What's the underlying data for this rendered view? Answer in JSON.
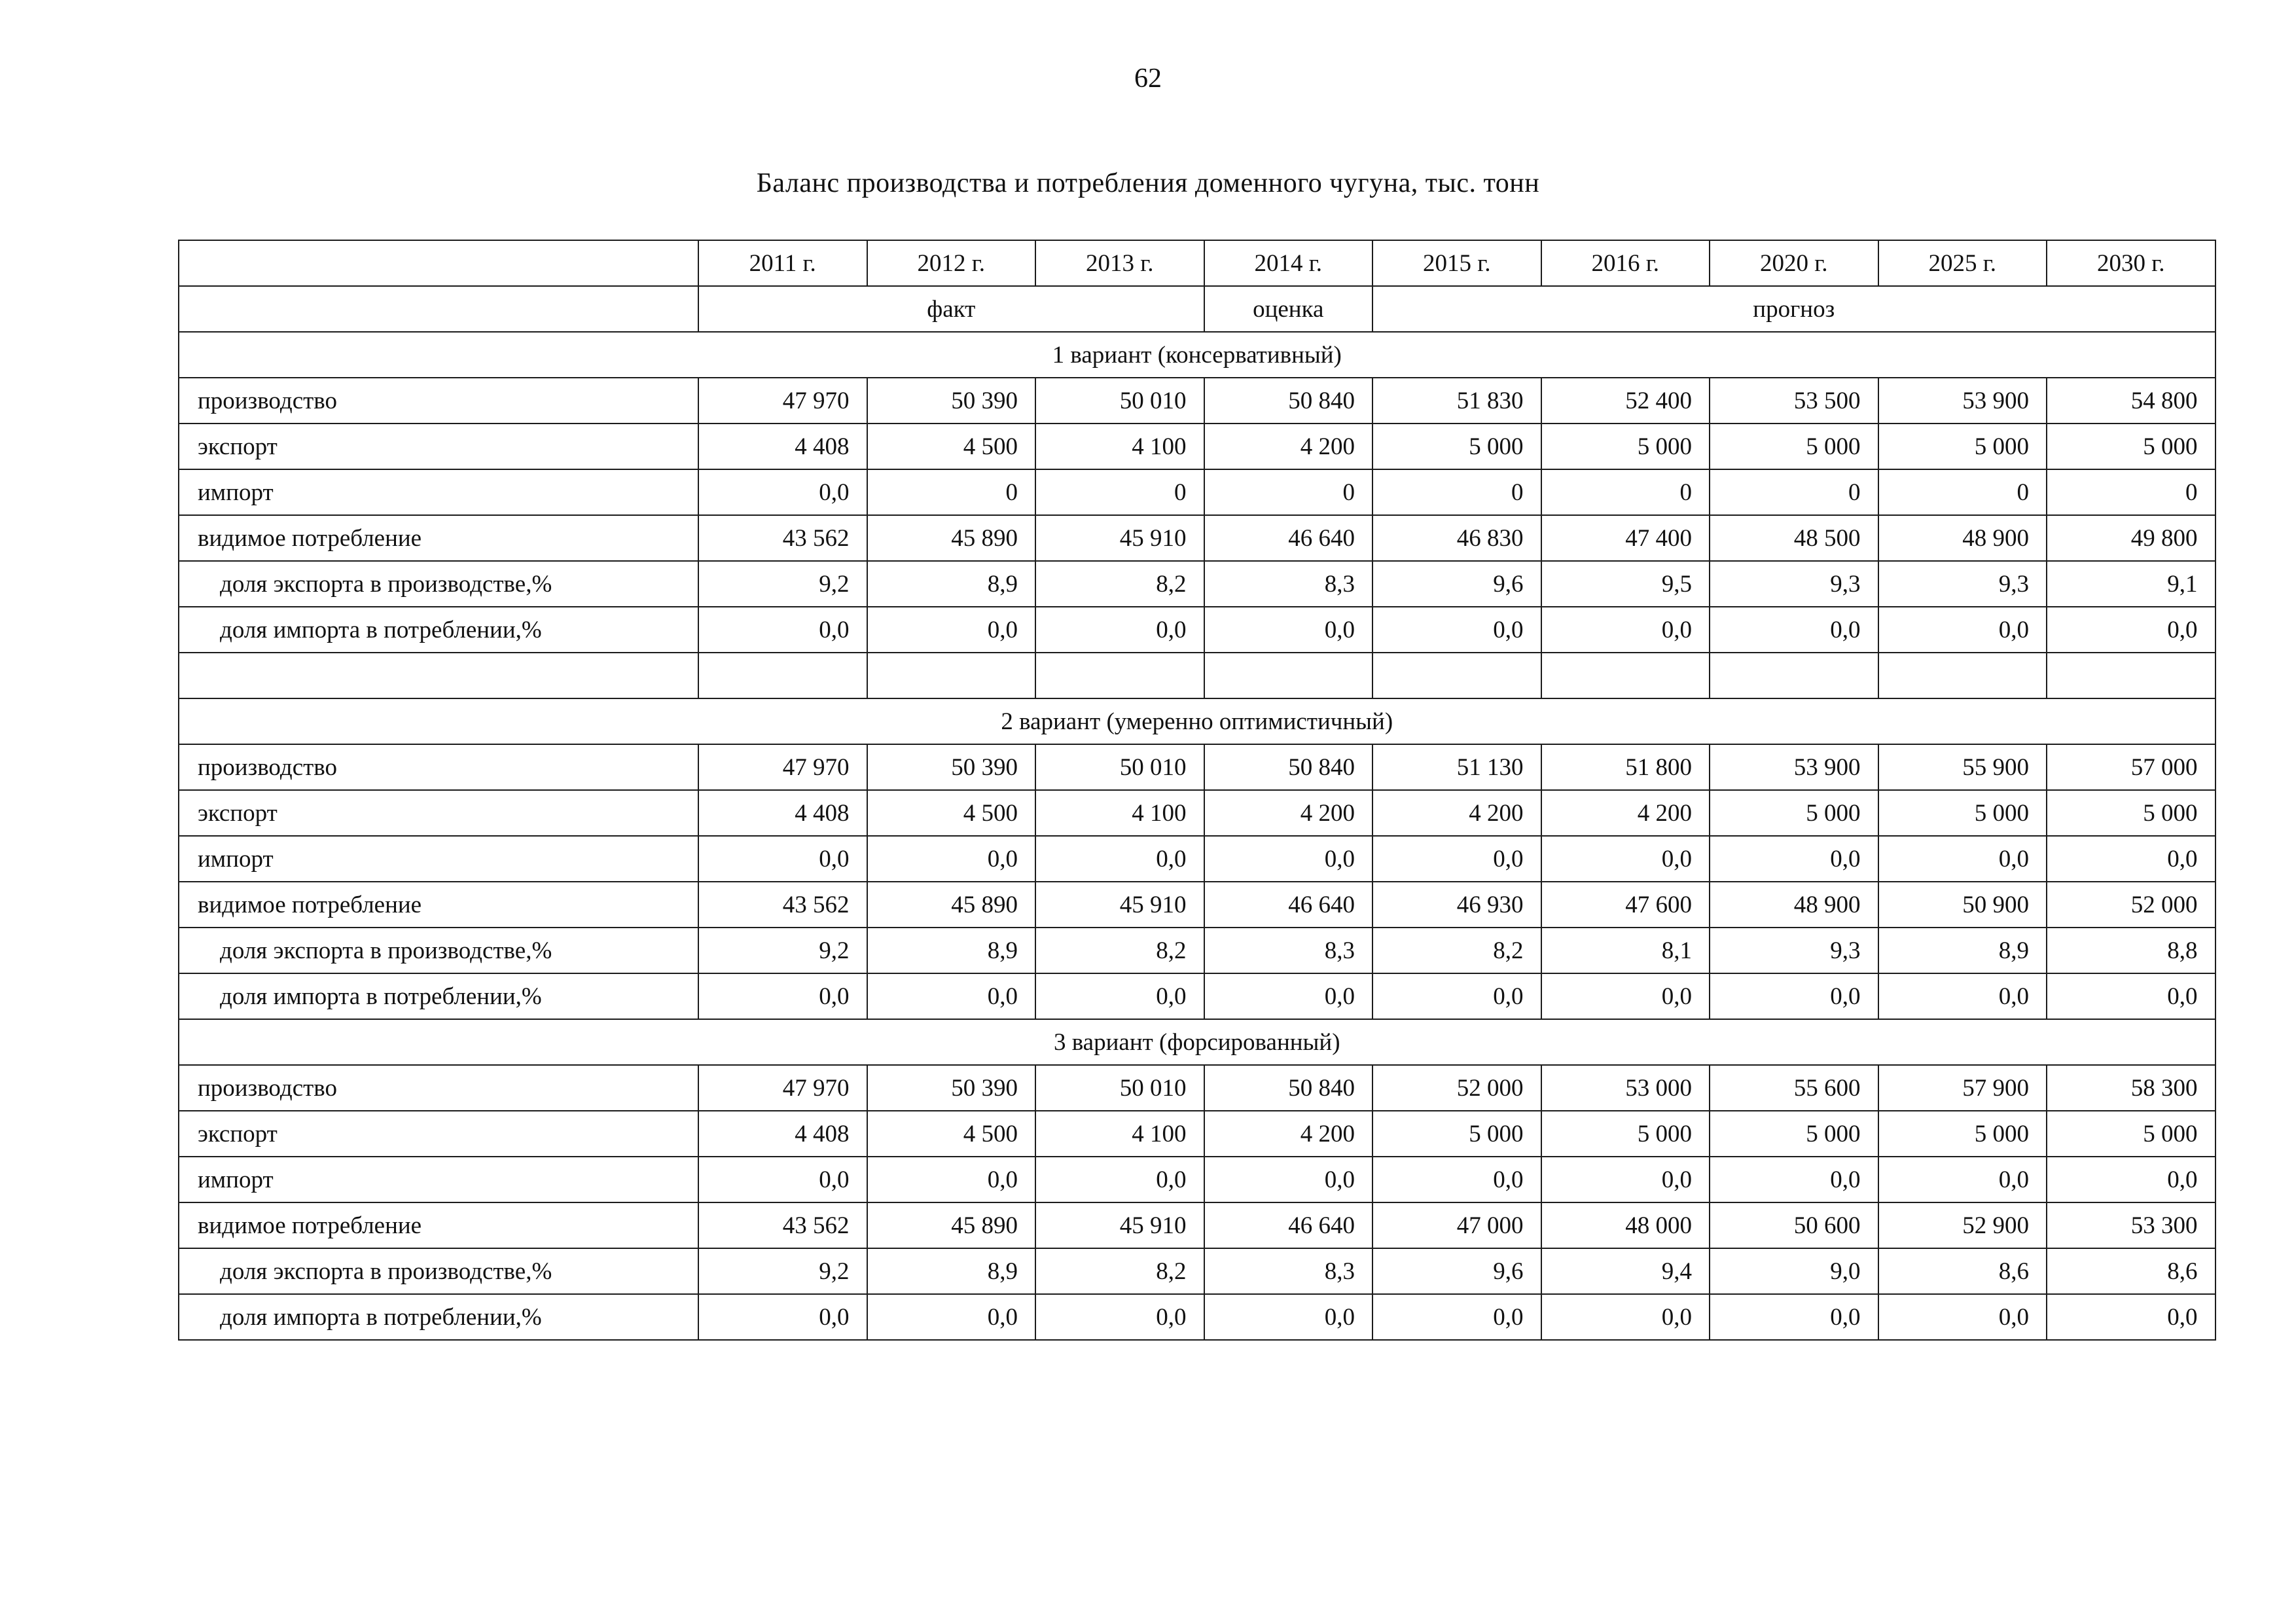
{
  "page": {
    "number": "62",
    "title": "Баланс производства и потребления доменного чугуна, тыс. тонн"
  },
  "table": {
    "year_headers": [
      "2011 г.",
      "2012 г.",
      "2013 г.",
      "2014 г.",
      "2015 г.",
      "2016 г.",
      "2020 г.",
      "2025 г.",
      "2030 г."
    ],
    "group_headers": [
      {
        "label": "факт",
        "span": 3
      },
      {
        "label": "оценка",
        "span": 1
      },
      {
        "label": "прогноз",
        "span": 5
      }
    ],
    "sections": [
      {
        "title": "1 вариант (консервативный)",
        "rows": [
          {
            "label": "производство",
            "indent": false,
            "values": [
              "47 970",
              "50 390",
              "50 010",
              "50 840",
              "51 830",
              "52 400",
              "53 500",
              "53 900",
              "54 800"
            ]
          },
          {
            "label": "экспорт",
            "indent": false,
            "values": [
              "4 408",
              "4 500",
              "4 100",
              "4 200",
              "5 000",
              "5 000",
              "5 000",
              "5 000",
              "5 000"
            ]
          },
          {
            "label": "импорт",
            "indent": false,
            "values": [
              "0,0",
              "0",
              "0",
              "0",
              "0",
              "0",
              "0",
              "0",
              "0"
            ]
          },
          {
            "label": "видимое потребление",
            "indent": false,
            "values": [
              "43 562",
              "45 890",
              "45 910",
              "46 640",
              "46 830",
              "47 400",
              "48 500",
              "48 900",
              "49 800"
            ]
          },
          {
            "label": "доля экспорта в производстве,%",
            "indent": true,
            "values": [
              "9,2",
              "8,9",
              "8,2",
              "8,3",
              "9,6",
              "9,5",
              "9,3",
              "9,3",
              "9,1"
            ]
          },
          {
            "label": "доля импорта в потреблении,%",
            "indent": true,
            "values": [
              "0,0",
              "0,0",
              "0,0",
              "0,0",
              "0,0",
              "0,0",
              "0,0",
              "0,0",
              "0,0"
            ]
          },
          {
            "label": "",
            "indent": false,
            "values": [
              "",
              "",
              "",
              "",
              "",
              "",
              "",
              "",
              ""
            ]
          }
        ]
      },
      {
        "title": "2 вариант (умеренно оптимистичный)",
        "rows": [
          {
            "label": "производство",
            "indent": false,
            "values": [
              "47 970",
              "50 390",
              "50 010",
              "50 840",
              "51 130",
              "51 800",
              "53 900",
              "55 900",
              "57 000"
            ]
          },
          {
            "label": "экспорт",
            "indent": false,
            "values": [
              "4 408",
              "4 500",
              "4 100",
              "4 200",
              "4 200",
              "4 200",
              "5 000",
              "5 000",
              "5 000"
            ]
          },
          {
            "label": "импорт",
            "indent": false,
            "values": [
              "0,0",
              "0,0",
              "0,0",
              "0,0",
              "0,0",
              "0,0",
              "0,0",
              "0,0",
              "0,0"
            ]
          },
          {
            "label": "видимое потребление",
            "indent": false,
            "values": [
              "43 562",
              "45 890",
              "45 910",
              "46 640",
              "46 930",
              "47 600",
              "48 900",
              "50 900",
              "52 000"
            ]
          },
          {
            "label": "доля экспорта в производстве,%",
            "indent": true,
            "values": [
              "9,2",
              "8,9",
              "8,2",
              "8,3",
              "8,2",
              "8,1",
              "9,3",
              "8,9",
              "8,8"
            ]
          },
          {
            "label": "доля импорта в потреблении,%",
            "indent": true,
            "values": [
              "0,0",
              "0,0",
              "0,0",
              "0,0",
              "0,0",
              "0,0",
              "0,0",
              "0,0",
              "0,0"
            ]
          }
        ]
      },
      {
        "title": "3 вариант (форсированный)",
        "rows": [
          {
            "label": "производство",
            "indent": false,
            "values": [
              "47 970",
              "50 390",
              "50 010",
              "50 840",
              "52 000",
              "53 000",
              "55 600",
              "57 900",
              "58 300"
            ]
          },
          {
            "label": "экспорт",
            "indent": false,
            "values": [
              "4 408",
              "4 500",
              "4 100",
              "4 200",
              "5 000",
              "5 000",
              "5 000",
              "5 000",
              "5 000"
            ]
          },
          {
            "label": "импорт",
            "indent": false,
            "values": [
              "0,0",
              "0,0",
              "0,0",
              "0,0",
              "0,0",
              "0,0",
              "0,0",
              "0,0",
              "0,0"
            ]
          },
          {
            "label": "видимое потребление",
            "indent": false,
            "values": [
              "43 562",
              "45 890",
              "45 910",
              "46 640",
              "47 000",
              "48 000",
              "50 600",
              "52 900",
              "53 300"
            ]
          },
          {
            "label": "доля экспорта в производстве,%",
            "indent": true,
            "values": [
              "9,2",
              "8,9",
              "8,2",
              "8,3",
              "9,6",
              "9,4",
              "9,0",
              "8,6",
              "8,6"
            ]
          },
          {
            "label": "доля импорта в потреблении,%",
            "indent": true,
            "values": [
              "0,0",
              "0,0",
              "0,0",
              "0,0",
              "0,0",
              "0,0",
              "0,0",
              "0,0",
              "0,0"
            ]
          }
        ]
      }
    ]
  }
}
